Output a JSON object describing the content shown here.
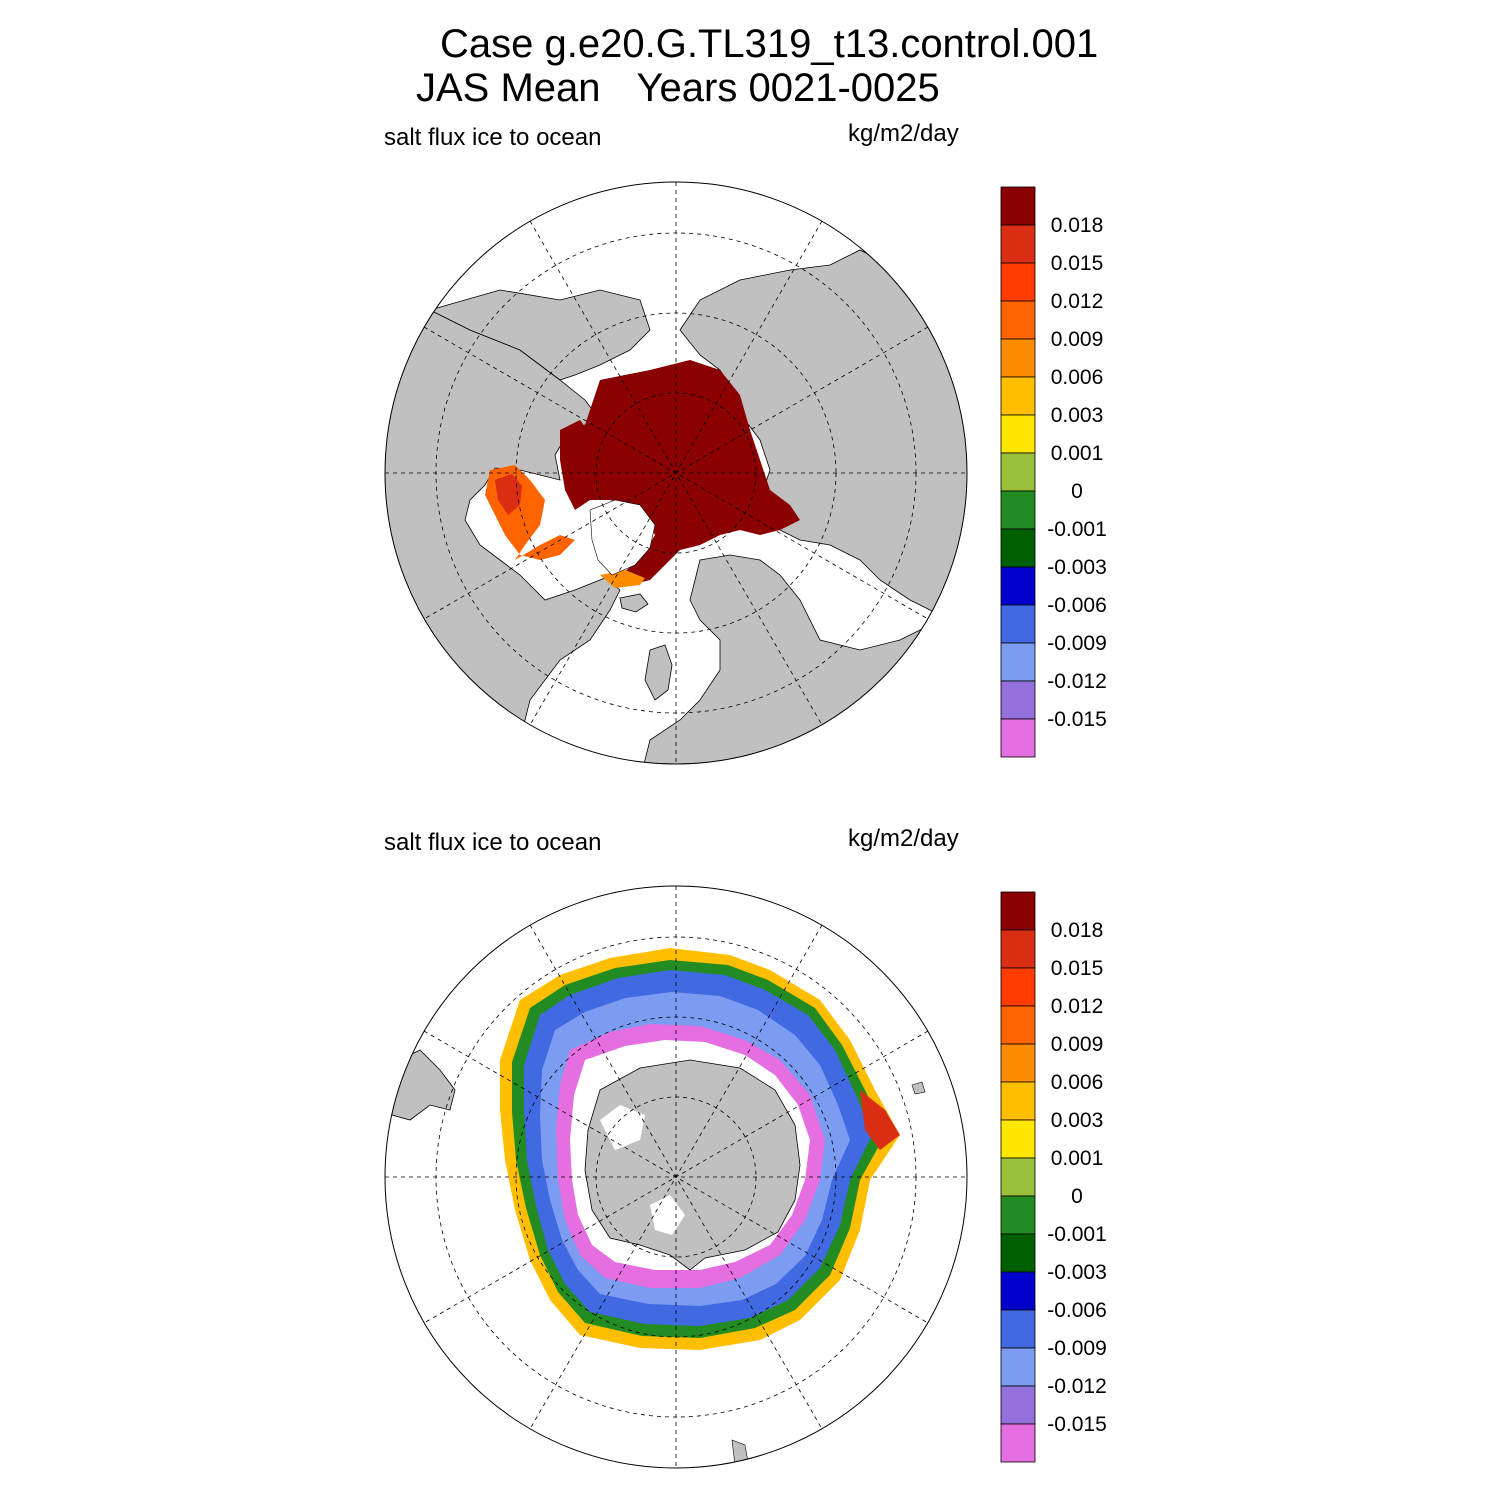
{
  "title": {
    "case": "Case g.e20.G.TL319_t13.control.001",
    "period": "JAS Mean",
    "years": "Years 0021-0025"
  },
  "panels": [
    {
      "id": "north",
      "hemisphere": "Northern Hemisphere",
      "variable": "salt flux ice to ocean",
      "units": "kg/m2/day"
    },
    {
      "id": "south",
      "hemisphere": "Southern Hemisphere",
      "variable": "salt flux ice to ocean",
      "units": "kg/m2/day"
    }
  ],
  "colorbar": {
    "labels": [
      "0.018",
      "0.015",
      "0.012",
      "0.009",
      "0.006",
      "0.003",
      "0.001",
      "0",
      "-0.001",
      "-0.003",
      "-0.006",
      "-0.009",
      "-0.012",
      "-0.015"
    ],
    "colors": [
      "#8b0000",
      "#d92e14",
      "#ff3c00",
      "#ff6400",
      "#ff8c00",
      "#ffbf00",
      "#ffe600",
      "#9ac03a",
      "#228b22",
      "#005f00",
      "#0000cd",
      "#4169e1",
      "#7b9cf0",
      "#9370db",
      "#e56ee0"
    ]
  },
  "chart_data": [
    {
      "type": "heatmap",
      "projection": "polar stereographic",
      "hemisphere": "north",
      "title": "salt flux ice to ocean",
      "units": "kg/m2/day",
      "levels": [
        -0.015,
        -0.012,
        -0.009,
        -0.006,
        -0.003,
        -0.001,
        0,
        0.001,
        0.003,
        0.006,
        0.009,
        0.012,
        0.015,
        0.018
      ],
      "dominant_value": "> 0.018 over central Arctic Ocean",
      "field_summary": "positive salt flux (ice melt) over Arctic basin; 0.006-0.018 near ice edge in Baffin Bay and Hudson Bay"
    },
    {
      "type": "heatmap",
      "projection": "polar stereographic",
      "hemisphere": "south",
      "title": "salt flux ice to ocean",
      "units": "kg/m2/day",
      "levels": [
        -0.015,
        -0.012,
        -0.009,
        -0.006,
        -0.003,
        -0.001,
        0,
        0.001,
        0.003,
        0.006,
        0.009,
        0.012,
        0.015,
        0.018
      ],
      "field_summary": "negative salt flux (< -0.015) near Antarctic coast, -0.003 to -0.012 over pack ice, positive 0.001-0.018 along outer ice edge"
    }
  ]
}
